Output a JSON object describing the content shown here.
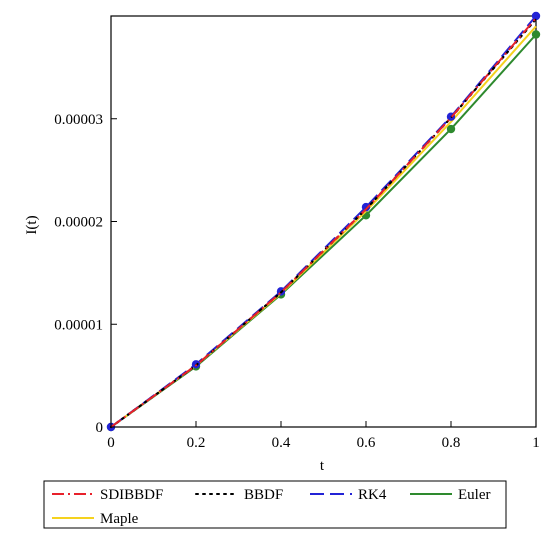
{
  "chart_data": {
    "type": "line",
    "xlabel": "t",
    "ylabel": "I(t)",
    "xlim": [
      0,
      1
    ],
    "ylim": [
      0,
      4e-05
    ],
    "x_ticks": [
      {
        "value": 0,
        "label": "0"
      },
      {
        "value": 0.2,
        "label": "0.2"
      },
      {
        "value": 0.4,
        "label": "0.4"
      },
      {
        "value": 0.6,
        "label": "0.6"
      },
      {
        "value": 0.8,
        "label": "0.8"
      },
      {
        "value": 1,
        "label": "1"
      }
    ],
    "y_ticks": [
      {
        "value": 0,
        "label": "0"
      },
      {
        "value": 1e-05,
        "label": "0.00001"
      },
      {
        "value": 2e-05,
        "label": "0.00002"
      },
      {
        "value": 3e-05,
        "label": "0.00003"
      }
    ],
    "x": [
      0,
      0.2,
      0.4,
      0.6,
      0.8,
      1
    ],
    "series": [
      {
        "name": "SDIBBDF",
        "color": "#e8212b",
        "dash": "dashdot",
        "markers": false,
        "values": [
          0,
          6e-06,
          1.31e-05,
          2.12e-05,
          3.01e-05,
          3.98e-05
        ]
      },
      {
        "name": "BBDF",
        "color": "#000000",
        "dash": "dot",
        "markers": false,
        "values": [
          0,
          6e-06,
          1.31e-05,
          2.12e-05,
          3.01e-05,
          3.97e-05
        ]
      },
      {
        "name": "RK4",
        "color": "#2323d6",
        "dash": "dash",
        "markers": true,
        "values": [
          0,
          6.1e-06,
          1.32e-05,
          2.14e-05,
          3.02e-05,
          4e-05
        ]
      },
      {
        "name": "Euler",
        "color": "#2e8a2e",
        "dash": "solid",
        "markers": true,
        "values": [
          0,
          5.9e-06,
          1.29e-05,
          2.06e-05,
          2.9e-05,
          3.82e-05
        ]
      },
      {
        "name": "Maple",
        "color": "#f5d21e",
        "dash": "solid",
        "markers": false,
        "values": [
          0,
          6e-06,
          1.3e-05,
          2.1e-05,
          2.97e-05,
          3.9e-05
        ]
      }
    ],
    "grid": false,
    "legend_position": "bottom"
  }
}
